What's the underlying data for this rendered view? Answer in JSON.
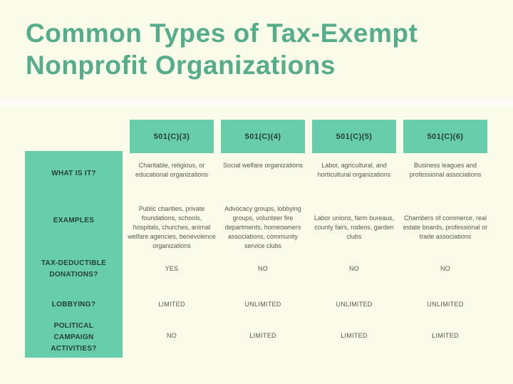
{
  "title": {
    "line1": "Common Types of Tax-Exempt",
    "line2": "Nonprofit Organizations"
  },
  "colors": {
    "background": "#FAFBE9",
    "accent_green": "#68CDAA",
    "title_green": "#55AD8B",
    "dark_text": "#24403A",
    "body_text": "#57584E"
  },
  "chart_data": {
    "type": "table",
    "title": "Common Types of Tax-Exempt Nonprofit Organizations",
    "columns": [
      "501(C)(3)",
      "501(C)(4)",
      "501(C)(5)",
      "501(C)(6)"
    ],
    "rows": [
      {
        "label": "WHAT IS IT?",
        "cells": [
          "Charitable, religious, or educational organizations",
          "Social welfare organizations",
          "Labor, agricultural, and horticultural organizations",
          "Business leagues and professional associations"
        ]
      },
      {
        "label": "EXAMPLES",
        "cells": [
          "Public charities, private foundations, schools, hospitals, churches, animal welfare agencies, benevolence organizations",
          "Advocacy groups, lobbying groups, volunteer fire departments, homeowners associations, community service clubs",
          "Labor unions, farm bureaus, county fairs, rodeos, garden clubs",
          "Chambers of commerce, real estate boards, professional or trade associations"
        ]
      },
      {
        "label": "TAX-DEDUCTIBLE DONATIONS?",
        "cells": [
          "YES",
          "NO",
          "NO",
          "NO"
        ]
      },
      {
        "label": "LOBBYING?",
        "cells": [
          "LIMITED",
          "UNLIMITED",
          "UNLIMITED",
          "UNLIMITED"
        ]
      },
      {
        "label": "POLITICAL CAMPAIGN ACTIVITIES?",
        "cells": [
          "NO",
          "LIMITED",
          "LIMITED",
          "LIMITED"
        ]
      }
    ]
  }
}
